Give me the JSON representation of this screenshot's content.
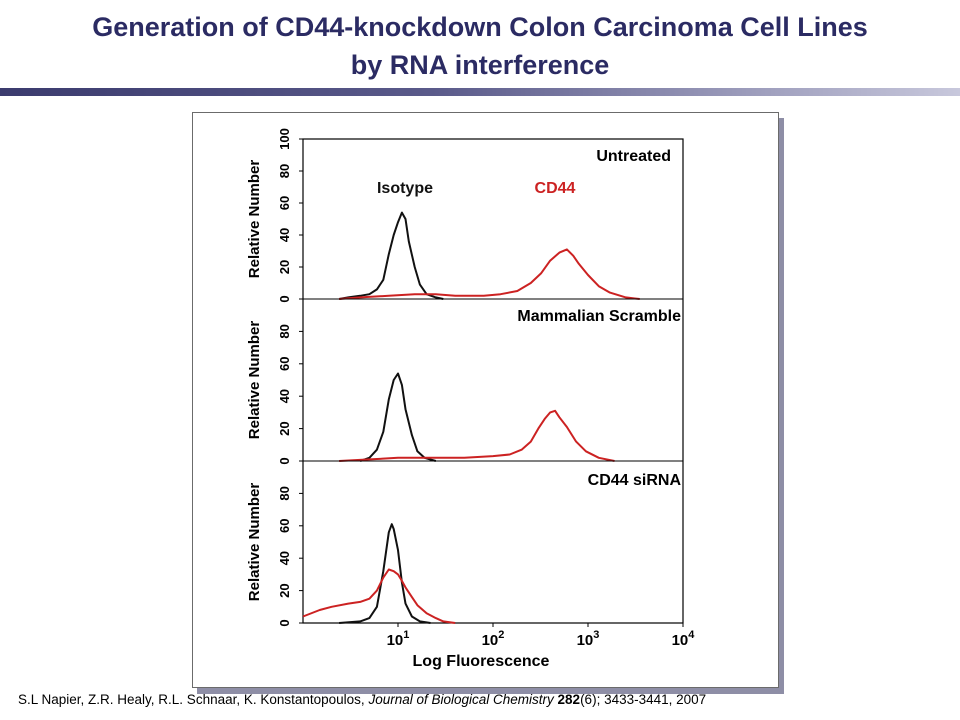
{
  "slide": {
    "title_line1": "Generation of CD44-knockdown Colon Carcinoma Cell Lines",
    "title_line2": "by RNA interference",
    "citation": {
      "authors": "S.L Napier, Z.R. Healy, R.L. Schnaar, K. Konstantopoulos, ",
      "journal": "Journal of Biological Chemistry",
      "volume": " 282",
      "issue": "(6)",
      "pages": "; 3433-3441, 2007"
    }
  },
  "chart_data": {
    "type": "line",
    "xlabel": "Log Fluorescence",
    "x_scale": "log",
    "xlim": [
      1,
      10000
    ],
    "xticks": [
      {
        "value": 10,
        "base": "10",
        "exp": "1"
      },
      {
        "value": 100,
        "base": "10",
        "exp": "2"
      },
      {
        "value": 1000,
        "base": "10",
        "exp": "3"
      },
      {
        "value": 10000,
        "base": "10",
        "exp": "4"
      }
    ],
    "colors": {
      "isotype": "#111111",
      "cd44": "#cc2222",
      "frame": "#000000"
    },
    "panels": [
      {
        "label": "Untreated",
        "ylabel": "Relative Number",
        "ylim": [
          0,
          100
        ],
        "yticks": [
          0,
          20,
          40,
          60,
          80,
          100
        ],
        "annotations": [
          {
            "text": "Isotype",
            "color": "#111111"
          },
          {
            "text": "CD44",
            "color": "#cc2222"
          }
        ],
        "series": [
          {
            "name": "Isotype",
            "color": "#111111",
            "points": [
              [
                2.4,
                0
              ],
              [
                3,
                1
              ],
              [
                4,
                2
              ],
              [
                5,
                3
              ],
              [
                6,
                6
              ],
              [
                7,
                12
              ],
              [
                8,
                28
              ],
              [
                9,
                40
              ],
              [
                10,
                48
              ],
              [
                11,
                54
              ],
              [
                12,
                50
              ],
              [
                13,
                36
              ],
              [
                15,
                20
              ],
              [
                17,
                9
              ],
              [
                20,
                3
              ],
              [
                25,
                1
              ],
              [
                30,
                0
              ]
            ]
          },
          {
            "color": "#cc2222",
            "points": [
              [
                2.4,
                0
              ],
              [
                4,
                1
              ],
              [
                8,
                2
              ],
              [
                15,
                3
              ],
              [
                25,
                3
              ],
              [
                40,
                2
              ],
              [
                80,
                2
              ],
              [
                120,
                3
              ],
              [
                180,
                5
              ],
              [
                250,
                10
              ],
              [
                320,
                16
              ],
              [
                400,
                24
              ],
              [
                500,
                29
              ],
              [
                600,
                31
              ],
              [
                700,
                27
              ],
              [
                800,
                22
              ],
              [
                1000,
                15
              ],
              [
                1300,
                8
              ],
              [
                1700,
                4
              ],
              [
                2500,
                1
              ],
              [
                3500,
                0
              ]
            ]
          }
        ]
      },
      {
        "label": "Mammalian Scramble",
        "ylabel": "Relative Number",
        "ylim": [
          0,
          100
        ],
        "yticks": [
          0,
          20,
          40,
          60,
          80
        ],
        "annotations": [],
        "series": [
          {
            "name": "Isotype",
            "color": "#111111",
            "points": [
              [
                4,
                0
              ],
              [
                5,
                2
              ],
              [
                6,
                7
              ],
              [
                7,
                18
              ],
              [
                8,
                38
              ],
              [
                9,
                50
              ],
              [
                10,
                54
              ],
              [
                11,
                47
              ],
              [
                12,
                32
              ],
              [
                14,
                16
              ],
              [
                16,
                6
              ],
              [
                19,
                2
              ],
              [
                25,
                0
              ]
            ]
          },
          {
            "color": "#cc2222",
            "points": [
              [
                2.4,
                0
              ],
              [
                5,
                1
              ],
              [
                10,
                2
              ],
              [
                20,
                2
              ],
              [
                50,
                2
              ],
              [
                100,
                3
              ],
              [
                150,
                4
              ],
              [
                200,
                7
              ],
              [
                250,
                12
              ],
              [
                300,
                20
              ],
              [
                350,
                26
              ],
              [
                400,
                30
              ],
              [
                450,
                31
              ],
              [
                500,
                27
              ],
              [
                600,
                21
              ],
              [
                750,
                12
              ],
              [
                950,
                6
              ],
              [
                1300,
                2
              ],
              [
                1900,
                0
              ]
            ]
          }
        ]
      },
      {
        "label": "CD44 siRNA",
        "ylabel": "Relative Number",
        "ylim": [
          0,
          100
        ],
        "yticks": [
          0,
          20,
          40,
          60,
          80
        ],
        "annotations": [],
        "series": [
          {
            "name": "Isotype",
            "color": "#111111",
            "points": [
              [
                2.4,
                0
              ],
              [
                4,
                1
              ],
              [
                5,
                3
              ],
              [
                6,
                10
              ],
              [
                7,
                32
              ],
              [
                8,
                56
              ],
              [
                8.6,
                61
              ],
              [
                9,
                58
              ],
              [
                10,
                45
              ],
              [
                11,
                25
              ],
              [
                12,
                12
              ],
              [
                14,
                4
              ],
              [
                17,
                1
              ],
              [
                22,
                0
              ]
            ]
          },
          {
            "color": "#cc2222",
            "points": [
              [
                1,
                4
              ],
              [
                1.5,
                8
              ],
              [
                2,
                10
              ],
              [
                3,
                12
              ],
              [
                4,
                13
              ],
              [
                5,
                15
              ],
              [
                6,
                20
              ],
              [
                7,
                28
              ],
              [
                8,
                33
              ],
              [
                9,
                32
              ],
              [
                10,
                30
              ],
              [
                11,
                26
              ],
              [
                12,
                22
              ],
              [
                14,
                16
              ],
              [
                16,
                11
              ],
              [
                20,
                6
              ],
              [
                25,
                3
              ],
              [
                30,
                1
              ],
              [
                40,
                0
              ]
            ]
          }
        ]
      }
    ]
  }
}
